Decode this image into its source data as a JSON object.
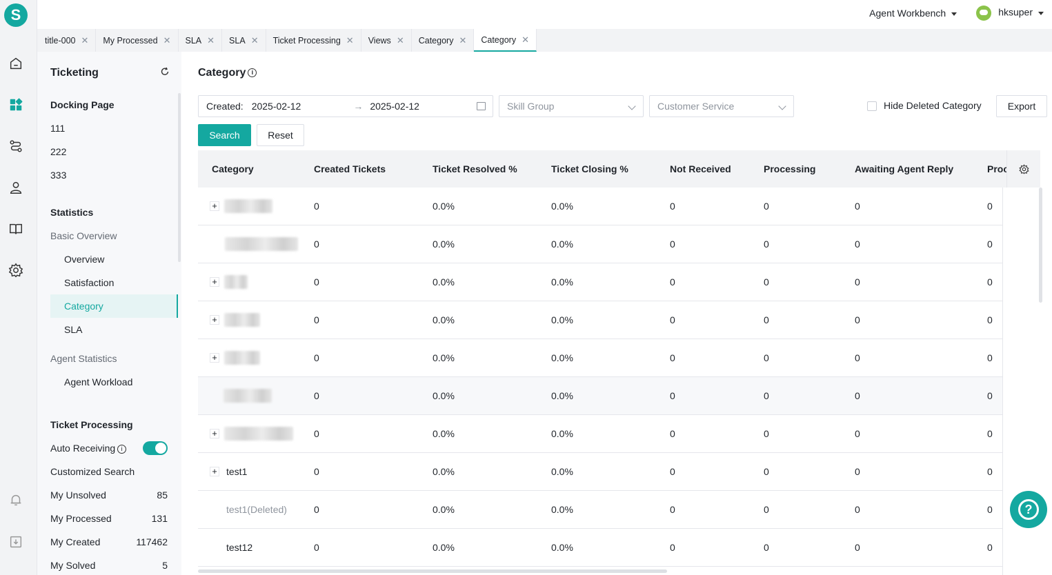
{
  "brand": {
    "logo_letter": "S",
    "accent": "#14a8a0"
  },
  "header": {
    "workbench_label": "Agent Workbench",
    "user_name": "hksuper"
  },
  "tabs": [
    {
      "label": "title-000"
    },
    {
      "label": "My Processed"
    },
    {
      "label": "SLA"
    },
    {
      "label": "SLA"
    },
    {
      "label": "Ticket Processing"
    },
    {
      "label": "Views"
    },
    {
      "label": "Category"
    },
    {
      "label": "Category",
      "active": true
    }
  ],
  "rail_icons": [
    "home-icon",
    "apps-icon",
    "route-icon",
    "user-icon",
    "book-icon",
    "settings-icon",
    "bell-icon",
    "download-icon"
  ],
  "sidebar": {
    "title": "Ticketing",
    "docking_title": "Docking Page",
    "docking_items": [
      "111",
      "222",
      "333"
    ],
    "statistics_title": "Statistics",
    "basic_overview": "Basic Overview",
    "basic_items": [
      "Overview",
      "Satisfaction",
      "Category",
      "SLA"
    ],
    "agent_statistics": "Agent Statistics",
    "agent_items": [
      "Agent Workload"
    ],
    "ticket_processing_title": "Ticket Processing",
    "auto_receiving": "Auto Receiving",
    "auto_receiving_on": true,
    "customized_search": "Customized Search",
    "counters": [
      {
        "label": "My Unsolved",
        "count": "85"
      },
      {
        "label": "My Processed",
        "count": "131"
      },
      {
        "label": "My Created",
        "count": "117462"
      },
      {
        "label": "My Solved",
        "count": "5"
      }
    ]
  },
  "main": {
    "title": "Category",
    "created_label": "Created:",
    "date_from": "2025-02-12",
    "date_to": "2025-02-12",
    "skill_group_placeholder": "Skill Group",
    "customer_service_placeholder": "Customer Service",
    "hide_deleted_label": "Hide Deleted Category",
    "export_label": "Export",
    "search_label": "Search",
    "reset_label": "Reset"
  },
  "table": {
    "columns": [
      "Category",
      "Created Tickets",
      "Ticket Resolved %",
      "Ticket Closing %",
      "Not Received",
      "Processing",
      "Awaiting Agent Reply",
      "Proc"
    ],
    "rows": [
      {
        "category": "",
        "expandable": true,
        "cells": [
          "0",
          "0.0%",
          "0.0%",
          "0",
          "0",
          "0",
          "0"
        ]
      },
      {
        "category": "",
        "expandable": false,
        "cells": [
          "0",
          "0.0%",
          "0.0%",
          "0",
          "0",
          "0",
          "0"
        ]
      },
      {
        "category": "",
        "expandable": true,
        "cells": [
          "0",
          "0.0%",
          "0.0%",
          "0",
          "0",
          "0",
          "0"
        ]
      },
      {
        "category": "",
        "expandable": true,
        "cells": [
          "0",
          "0.0%",
          "0.0%",
          "0",
          "0",
          "0",
          "0"
        ]
      },
      {
        "category": "",
        "expandable": true,
        "cells": [
          "0",
          "0.0%",
          "0.0%",
          "0",
          "0",
          "0",
          "0"
        ]
      },
      {
        "category": "",
        "expandable": false,
        "cells": [
          "0",
          "0.0%",
          "0.0%",
          "0",
          "0",
          "0",
          "0"
        ]
      },
      {
        "category": "",
        "expandable": true,
        "cells": [
          "0",
          "0.0%",
          "0.0%",
          "0",
          "0",
          "0",
          "0"
        ]
      },
      {
        "category": "test1",
        "expandable": true,
        "cells": [
          "0",
          "0.0%",
          "0.0%",
          "0",
          "0",
          "0",
          "0"
        ]
      },
      {
        "category": "test1(Deleted)",
        "expandable": false,
        "deleted": true,
        "cells": [
          "0",
          "0.0%",
          "0.0%",
          "0",
          "0",
          "0",
          "0"
        ]
      },
      {
        "category": "test12",
        "expandable": false,
        "cells": [
          "0",
          "0.0%",
          "0.0%",
          "0",
          "0",
          "0",
          "0"
        ]
      }
    ]
  }
}
